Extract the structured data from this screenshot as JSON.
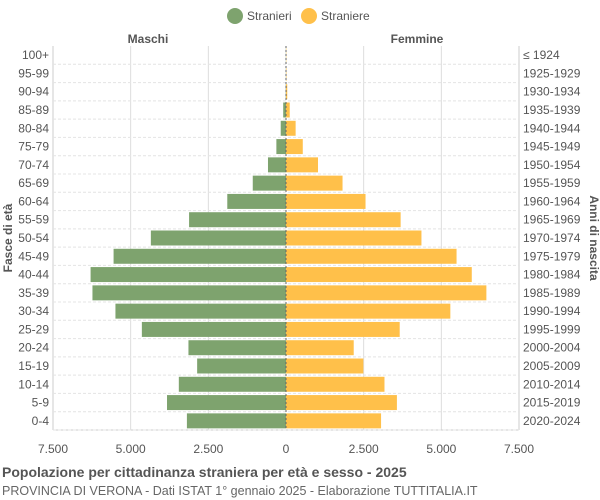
{
  "chart_data": {
    "type": "bar",
    "orientation": "horizontal-pyramid",
    "title": "Popolazione per cittadinanza straniera per età e sesso - 2025",
    "subtitle": "PROVINCIA DI VERONA - Dati ISTAT 1° gennaio 2025 - Elaborazione TUTTITALIA.IT",
    "ylabel_left": "Fasce di età",
    "ylabel_right": "Anni di nascita",
    "left_header": "Maschi",
    "right_header": "Femmine",
    "legend": {
      "position": "top",
      "items": [
        "Stranieri",
        "Straniere"
      ]
    },
    "colors": {
      "Stranieri": "#7ea36e",
      "Straniere": "#ffc04a"
    },
    "xlim": [
      -7500,
      7500
    ],
    "xticks": [
      "7.500",
      "5.000",
      "2.500",
      "0",
      "2.500",
      "5.000",
      "7.500"
    ],
    "grid": true,
    "categories": [
      "100+",
      "95-99",
      "90-94",
      "85-89",
      "80-84",
      "75-79",
      "70-74",
      "65-69",
      "60-64",
      "55-59",
      "50-54",
      "45-49",
      "40-44",
      "35-39",
      "30-34",
      "25-29",
      "20-24",
      "15-19",
      "10-14",
      "5-9",
      "0-4"
    ],
    "birth_years": [
      "≤ 1924",
      "1925-1929",
      "1930-1934",
      "1935-1939",
      "1940-1944",
      "1945-1949",
      "1950-1954",
      "1955-1959",
      "1960-1964",
      "1965-1969",
      "1970-1974",
      "1975-1979",
      "1980-1984",
      "1985-1989",
      "1990-1994",
      "1995-1999",
      "2000-2004",
      "2005-2009",
      "2010-2014",
      "2015-2019",
      "2020-2024"
    ],
    "series": [
      {
        "name": "Stranieri",
        "values": [
          5,
          5,
          10,
          90,
          170,
          310,
          580,
          1070,
          1890,
          3120,
          4350,
          5550,
          6290,
          6230,
          5490,
          4640,
          3140,
          2860,
          3450,
          3830,
          3190
        ]
      },
      {
        "name": "Straniere",
        "values": [
          10,
          15,
          40,
          120,
          310,
          540,
          1030,
          1820,
          2560,
          3690,
          4360,
          5490,
          5980,
          6450,
          5290,
          3660,
          2180,
          2490,
          3170,
          3570,
          3060
        ]
      }
    ]
  }
}
